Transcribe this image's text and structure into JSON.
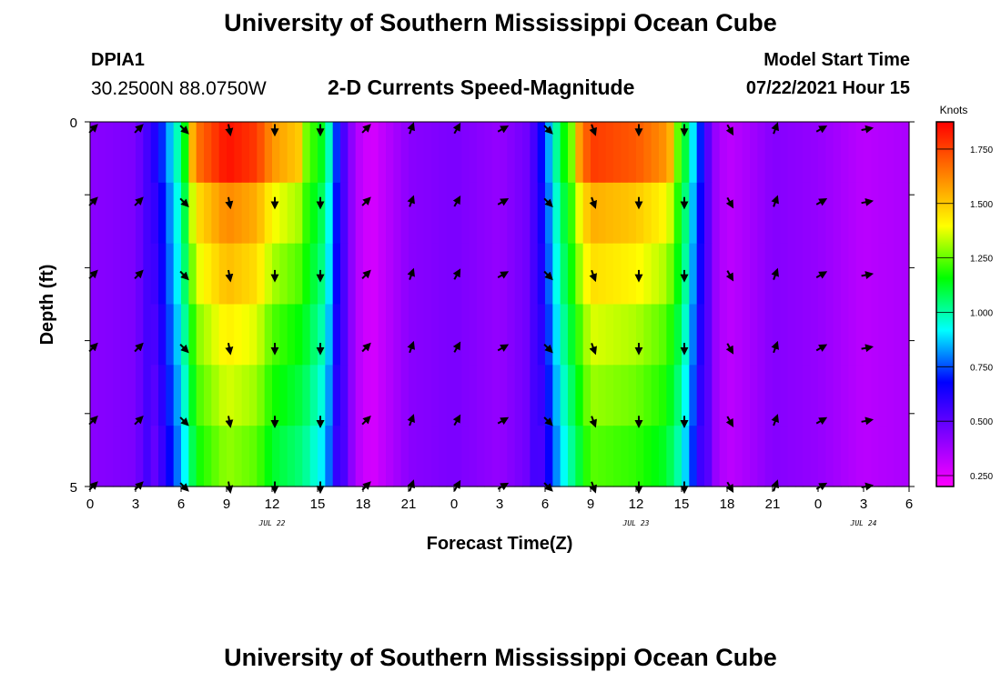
{
  "header": {
    "title": "University of Southern Mississippi Ocean Cube",
    "station_id": "DPIA1",
    "station_coords": "30.2500N  88.0750W",
    "plot_title": "2-D Currents Speed-Magnitude",
    "start_label": "Model Start Time",
    "start_value": "07/22/2021 Hour 15"
  },
  "footer": {
    "title": "University of Southern Mississippi Ocean Cube"
  },
  "chart_data": {
    "type": "heatmap",
    "title": "2-D Currents Speed-Magnitude",
    "xlabel": "Forecast Time(Z)",
    "ylabel": "Depth (ft)",
    "x_range": [
      0,
      54
    ],
    "y_range": [
      0,
      5
    ],
    "x_ticks": [
      0,
      3,
      6,
      9,
      12,
      15,
      18,
      21,
      24,
      27,
      30,
      33,
      36,
      39,
      42,
      45,
      48,
      51,
      54
    ],
    "x_tick_labels": [
      "0",
      "3",
      "6",
      "9",
      "12",
      "15",
      "18",
      "21",
      "0",
      "3",
      "6",
      "9",
      "12",
      "15",
      "18",
      "21",
      "0",
      "3",
      "6"
    ],
    "date_labels": [
      {
        "x": 12,
        "text": "JUL 22"
      },
      {
        "x": 36,
        "text": "JUL 23"
      },
      {
        "x": 51,
        "text": "JUL 24"
      }
    ],
    "y_tick_labels": [
      "0",
      "5"
    ],
    "depth_levels": [
      0,
      1,
      2,
      3,
      4,
      5
    ],
    "colorbar": {
      "label": "Knots",
      "min": 0.2,
      "max": 1.875,
      "ticks": [
        "0.250",
        "0.500",
        "0.750",
        "1.000",
        "1.250",
        "1.500",
        "1.750"
      ],
      "colors": [
        "#ff00ff",
        "#8000ff",
        "#0000ff",
        "#00ffff",
        "#00ff00",
        "#ffff00",
        "#ff8000",
        "#ff0000"
      ]
    },
    "speed_profile": [
      {
        "t": 0,
        "v": 0.42
      },
      {
        "t": 3,
        "v": 0.45
      },
      {
        "t": 4.5,
        "v": 0.65
      },
      {
        "t": 6,
        "v": 1.05
      },
      {
        "t": 7,
        "v": 1.45
      },
      {
        "t": 9,
        "v": 1.62
      },
      {
        "t": 11,
        "v": 1.55
      },
      {
        "t": 12,
        "v": 1.4
      },
      {
        "t": 14,
        "v": 1.3
      },
      {
        "t": 15.5,
        "v": 1.1
      },
      {
        "t": 16.5,
        "v": 0.6
      },
      {
        "t": 17.5,
        "v": 0.35
      },
      {
        "t": 18.5,
        "v": 0.27
      },
      {
        "t": 19.5,
        "v": 0.33
      },
      {
        "t": 21,
        "v": 0.42
      },
      {
        "t": 24,
        "v": 0.45
      },
      {
        "t": 27,
        "v": 0.4
      },
      {
        "t": 29,
        "v": 0.48
      },
      {
        "t": 30,
        "v": 0.75
      },
      {
        "t": 31,
        "v": 1.1
      },
      {
        "t": 33,
        "v": 1.55
      },
      {
        "t": 36,
        "v": 1.5
      },
      {
        "t": 38,
        "v": 1.4
      },
      {
        "t": 39,
        "v": 1.2
      },
      {
        "t": 40,
        "v": 0.8
      },
      {
        "t": 41,
        "v": 0.42
      },
      {
        "t": 42,
        "v": 0.32
      },
      {
        "t": 43,
        "v": 0.35
      },
      {
        "t": 45,
        "v": 0.43
      },
      {
        "t": 48,
        "v": 0.4
      },
      {
        "t": 51,
        "v": 0.33
      },
      {
        "t": 54,
        "v": 0.36
      }
    ],
    "depth_factor": [
      1.0,
      0.95,
      0.92,
      0.88,
      0.84,
      0.8
    ],
    "peak_depth_factor": [
      1.14,
      1.0,
      0.94,
      0.88,
      0.84,
      0.8
    ],
    "arrow_times": [
      0,
      3,
      6,
      9,
      12,
      15,
      18,
      21,
      24,
      27,
      30,
      33,
      36,
      39,
      42,
      45,
      48,
      51
    ],
    "arrow_direction_deg": [
      45,
      45,
      135,
      170,
      180,
      180,
      45,
      20,
      30,
      60,
      135,
      160,
      180,
      180,
      150,
      20,
      60,
      80
    ]
  }
}
